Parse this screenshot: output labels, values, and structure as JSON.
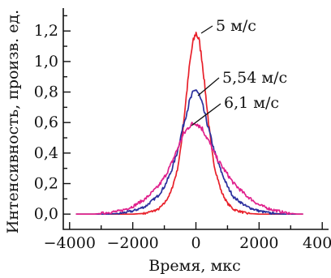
{
  "chart_data": {
    "type": "line",
    "title": "",
    "xlabel": "Время, мкс",
    "ylabel": "Интенсивность, произв. ед.",
    "xlim": [
      -4200,
      4200
    ],
    "ylim": [
      -0.1,
      1.35
    ],
    "x_ticks": [
      -4000,
      -2000,
      0,
      2000,
      4000
    ],
    "x_tick_labels": [
      "−4000",
      "−2000",
      "0",
      "2000",
      "4000"
    ],
    "y_ticks": [
      0.0,
      0.2,
      0.4,
      0.6,
      0.8,
      1.0,
      1.2
    ],
    "y_tick_labels": [
      "0,0",
      "0,2",
      "0,4",
      "0,6",
      "0,8",
      "1,0",
      "1,2"
    ],
    "grid": false,
    "legend": "none",
    "series": [
      {
        "name": "5 м/с",
        "color": "#e8202a",
        "x": [
          -3800,
          -2000,
          -1600,
          -1200,
          -1000,
          -800,
          -600,
          -500,
          -400,
          -300,
          -200,
          -100,
          0,
          100,
          200,
          300,
          400,
          500,
          600,
          800,
          1000,
          1200,
          1600,
          2000,
          3400
        ],
        "y": [
          0.0,
          0.0,
          0.005,
          0.03,
          0.07,
          0.14,
          0.28,
          0.4,
          0.58,
          0.78,
          0.98,
          1.12,
          1.19,
          1.14,
          1.0,
          0.8,
          0.6,
          0.42,
          0.3,
          0.15,
          0.07,
          0.03,
          0.005,
          0.0,
          0.0
        ]
      },
      {
        "name": "5,54 м/с",
        "color": "#2b2f9e",
        "x": [
          -3800,
          -2800,
          -2400,
          -2000,
          -1600,
          -1200,
          -1000,
          -800,
          -600,
          -400,
          -200,
          -100,
          0,
          100,
          200,
          400,
          600,
          800,
          1000,
          1200,
          1600,
          2000,
          2400,
          2800,
          3400
        ],
        "y": [
          0.0,
          0.0,
          0.005,
          0.02,
          0.05,
          0.12,
          0.18,
          0.27,
          0.4,
          0.58,
          0.74,
          0.79,
          0.82,
          0.78,
          0.72,
          0.56,
          0.4,
          0.28,
          0.18,
          0.11,
          0.05,
          0.02,
          0.005,
          0.0,
          0.0
        ]
      },
      {
        "name": "6,1 м/с",
        "color": "#e0208c",
        "x": [
          -3800,
          -3200,
          -2800,
          -2400,
          -2000,
          -1600,
          -1200,
          -1000,
          -800,
          -600,
          -400,
          -200,
          0,
          200,
          400,
          600,
          800,
          1000,
          1200,
          1600,
          2000,
          2400,
          2800,
          3200,
          3400
        ],
        "y": [
          0.0,
          0.0,
          0.01,
          0.02,
          0.05,
          0.1,
          0.18,
          0.24,
          0.32,
          0.42,
          0.52,
          0.58,
          0.6,
          0.56,
          0.48,
          0.39,
          0.32,
          0.26,
          0.2,
          0.12,
          0.06,
          0.03,
          0.01,
          0.0,
          0.0
        ]
      }
    ],
    "annotations": [
      {
        "text": "5 м/с",
        "series": 0
      },
      {
        "text": "5,54 м/с",
        "series": 1
      },
      {
        "text": "6,1 м/с",
        "series": 2
      }
    ]
  }
}
